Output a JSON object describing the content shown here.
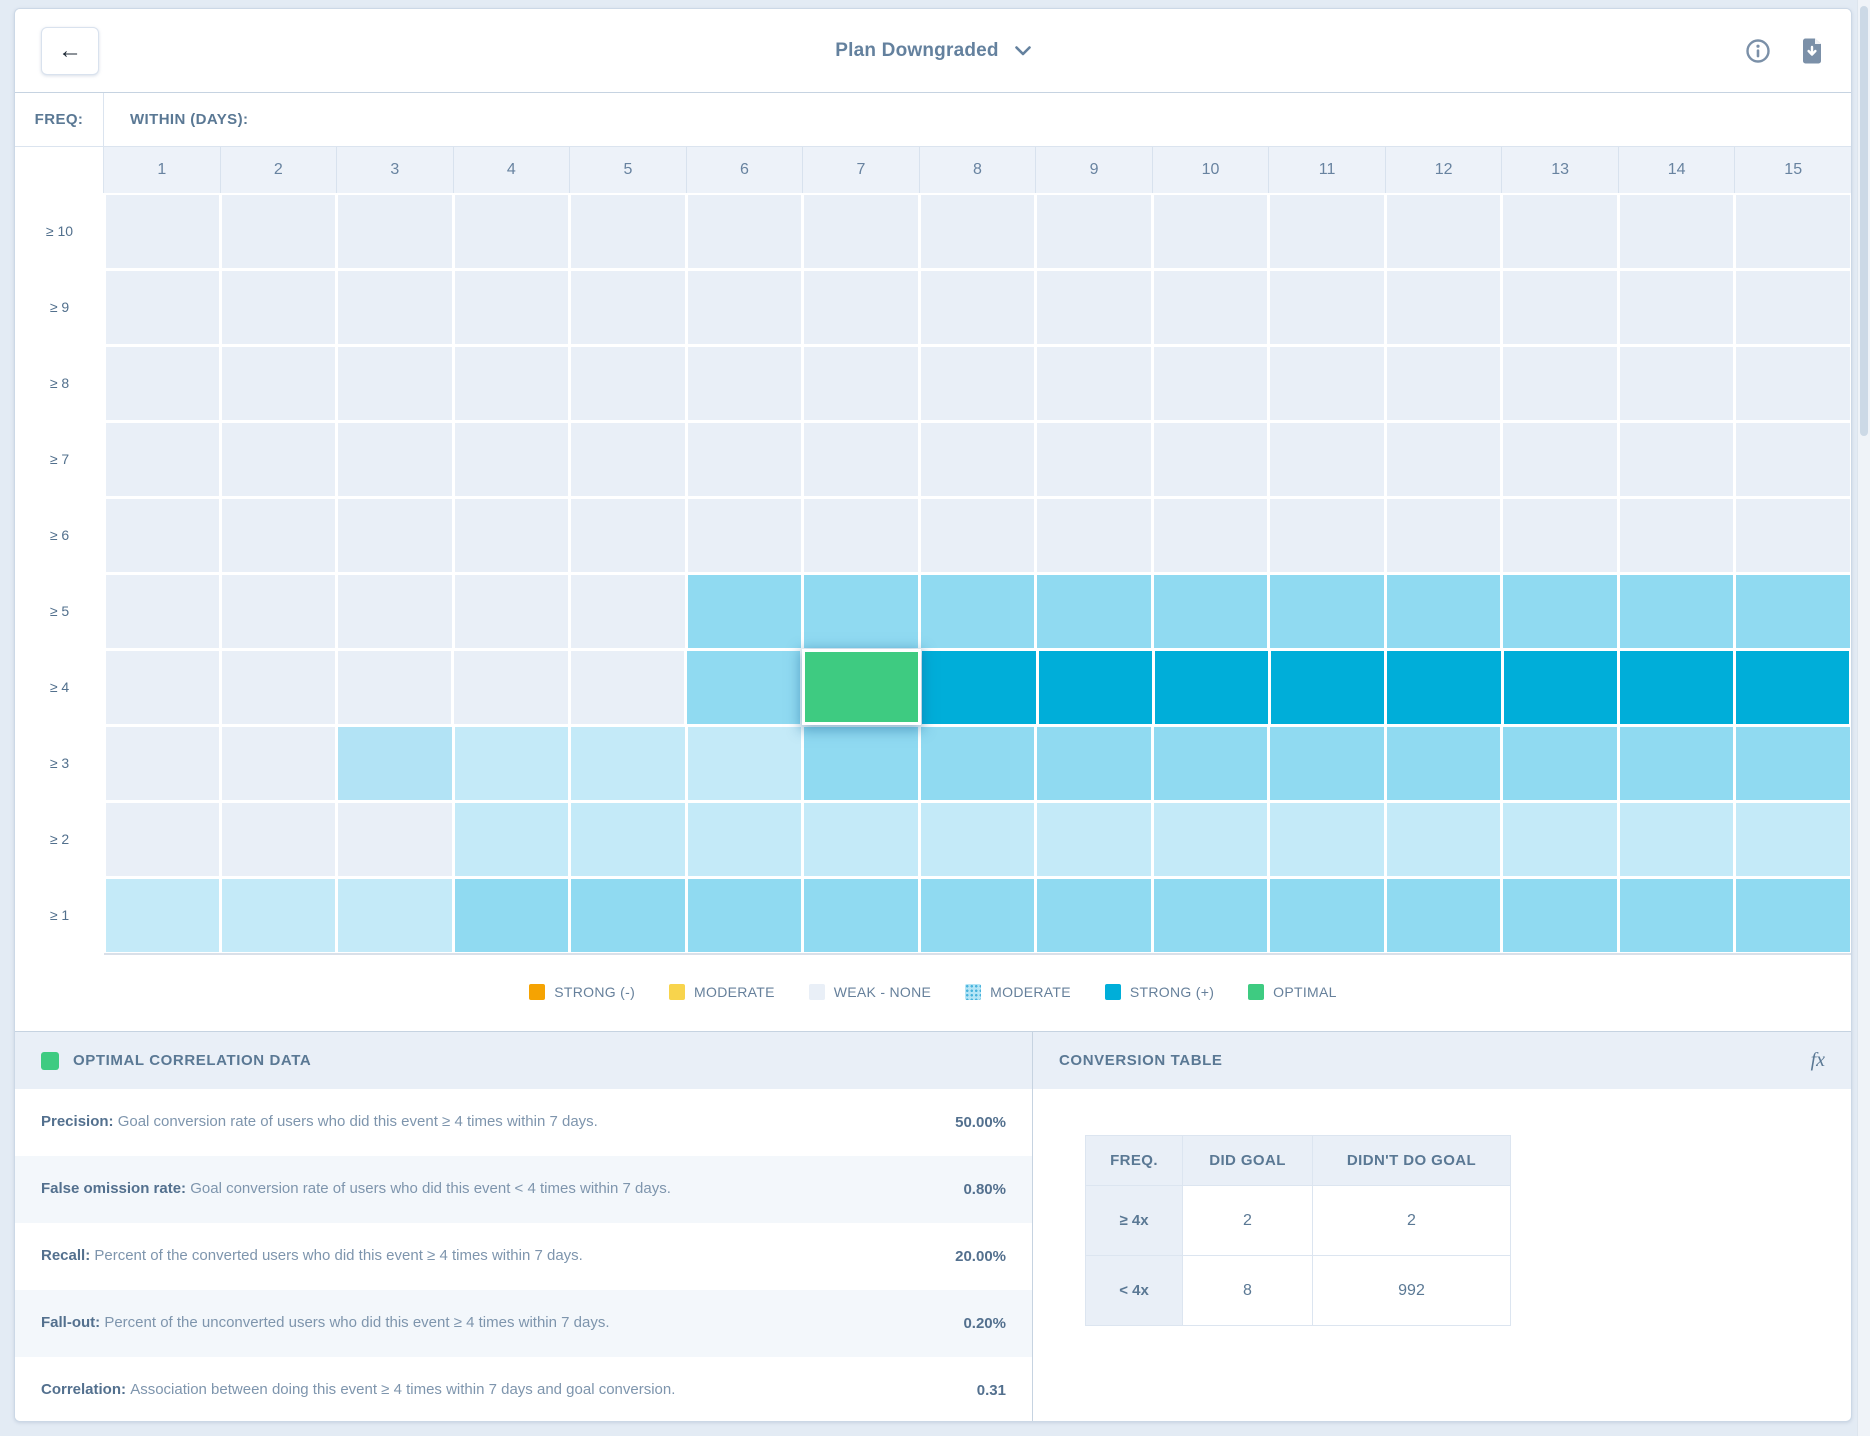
{
  "header": {
    "title": "Plan Downgraded",
    "back_glyph": "←"
  },
  "axis": {
    "freq_label": "FREQ:",
    "within_label": "WITHIN (DAYS):",
    "columns": [
      "1",
      "2",
      "3",
      "4",
      "5",
      "6",
      "7",
      "8",
      "9",
      "10",
      "11",
      "12",
      "13",
      "14",
      "15"
    ],
    "rows": [
      "≥ 10",
      "≥ 9",
      "≥ 8",
      "≥ 7",
      "≥ 6",
      "≥ 5",
      "≥ 4",
      "≥ 3",
      "≥ 2",
      "≥ 1"
    ]
  },
  "palette": {
    "W": "#e9eff7",
    "L1": "#c4eaf8",
    "L2": "#b2e3f5",
    "M": "#90daf1",
    "S": "#00aed9",
    "G": "#3ecb81"
  },
  "chart_data": {
    "type": "heatmap",
    "title": "Plan Downgraded",
    "xlabel": "WITHIN (DAYS):",
    "ylabel": "FREQ:",
    "columns": [
      1,
      2,
      3,
      4,
      5,
      6,
      7,
      8,
      9,
      10,
      11,
      12,
      13,
      14,
      15
    ],
    "rows": [
      "≥ 10",
      "≥ 9",
      "≥ 8",
      "≥ 7",
      "≥ 6",
      "≥ 5",
      "≥ 4",
      "≥ 3",
      "≥ 2",
      "≥ 1"
    ],
    "level_meaning": {
      "W": "WEAK - NONE",
      "L1": "WEAK-MODERATE (light)",
      "L2": "WEAK-MODERATE (slightly stronger)",
      "M": "MODERATE (+)",
      "S": "STRONG (+)",
      "G": "OPTIMAL (selected)"
    },
    "matrix": [
      [
        "W",
        "W",
        "W",
        "W",
        "W",
        "W",
        "W",
        "W",
        "W",
        "W",
        "W",
        "W",
        "W",
        "W",
        "W"
      ],
      [
        "W",
        "W",
        "W",
        "W",
        "W",
        "W",
        "W",
        "W",
        "W",
        "W",
        "W",
        "W",
        "W",
        "W",
        "W"
      ],
      [
        "W",
        "W",
        "W",
        "W",
        "W",
        "W",
        "W",
        "W",
        "W",
        "W",
        "W",
        "W",
        "W",
        "W",
        "W"
      ],
      [
        "W",
        "W",
        "W",
        "W",
        "W",
        "W",
        "W",
        "W",
        "W",
        "W",
        "W",
        "W",
        "W",
        "W",
        "W"
      ],
      [
        "W",
        "W",
        "W",
        "W",
        "W",
        "W",
        "W",
        "W",
        "W",
        "W",
        "W",
        "W",
        "W",
        "W",
        "W"
      ],
      [
        "W",
        "W",
        "W",
        "W",
        "W",
        "M",
        "M",
        "M",
        "M",
        "M",
        "M",
        "M",
        "M",
        "M",
        "M"
      ],
      [
        "W",
        "W",
        "W",
        "W",
        "W",
        "M",
        "G",
        "S",
        "S",
        "S",
        "S",
        "S",
        "S",
        "S",
        "S"
      ],
      [
        "W",
        "W",
        "L2",
        "L1",
        "L1",
        "L1",
        "M",
        "M",
        "M",
        "M",
        "M",
        "M",
        "M",
        "M",
        "M"
      ],
      [
        "W",
        "W",
        "W",
        "L1",
        "L1",
        "L1",
        "L1",
        "L1",
        "L1",
        "L1",
        "L1",
        "L1",
        "L1",
        "L1",
        "L1"
      ],
      [
        "L1",
        "L1",
        "L1",
        "M",
        "M",
        "M",
        "M",
        "M",
        "M",
        "M",
        "M",
        "M",
        "M",
        "M",
        "M"
      ]
    ],
    "selected_cell": {
      "row": "≥ 4",
      "column": 7,
      "level": "OPTIMAL"
    }
  },
  "legend": [
    {
      "label": "STRONG (-)",
      "color": "#f5a302",
      "dotted": false
    },
    {
      "label": "MODERATE",
      "color": "#f8d44c",
      "dotted": false
    },
    {
      "label": "WEAK - NONE",
      "color": "#e9eff7",
      "dotted": false
    },
    {
      "label": "MODERATE",
      "color": "#b5e5f6",
      "dotted": true
    },
    {
      "label": "STRONG (+)",
      "color": "#00aed9",
      "dotted": false
    },
    {
      "label": "OPTIMAL",
      "color": "#3ecb81",
      "dotted": false
    }
  ],
  "optimal_panel": {
    "title": "OPTIMAL CORRELATION DATA",
    "chip_color": "#3ecb81",
    "metrics": [
      {
        "name": "Precision",
        "description": "Goal conversion rate of users who did this event ≥ 4 times within 7 days.",
        "value": "50.00%"
      },
      {
        "name": "False omission rate",
        "description": "Goal conversion rate of users who did this event < 4 times within 7 days.",
        "value": "0.80%"
      },
      {
        "name": "Recall",
        "description": "Percent of the converted users who did this event ≥ 4 times within 7 days.",
        "value": "20.00%"
      },
      {
        "name": "Fall-out",
        "description": "Percent of the unconverted users who did this event ≥ 4 times within 7 days.",
        "value": "0.20%"
      },
      {
        "name": "Correlation",
        "description": "Association between doing this event ≥ 4 times within 7 days and goal conversion.",
        "value": "0.31"
      }
    ]
  },
  "conversion_panel": {
    "title": "CONVERSION TABLE",
    "fx_glyph": "fx",
    "table": {
      "headers": [
        "FREQ.",
        "DID GOAL",
        "DIDN'T DO GOAL"
      ],
      "rows": [
        {
          "freq": "≥ 4x",
          "did_goal": "2",
          "didnt_do_goal": "2"
        },
        {
          "freq": "< 4x",
          "did_goal": "8",
          "didnt_do_goal": "992"
        }
      ]
    }
  }
}
